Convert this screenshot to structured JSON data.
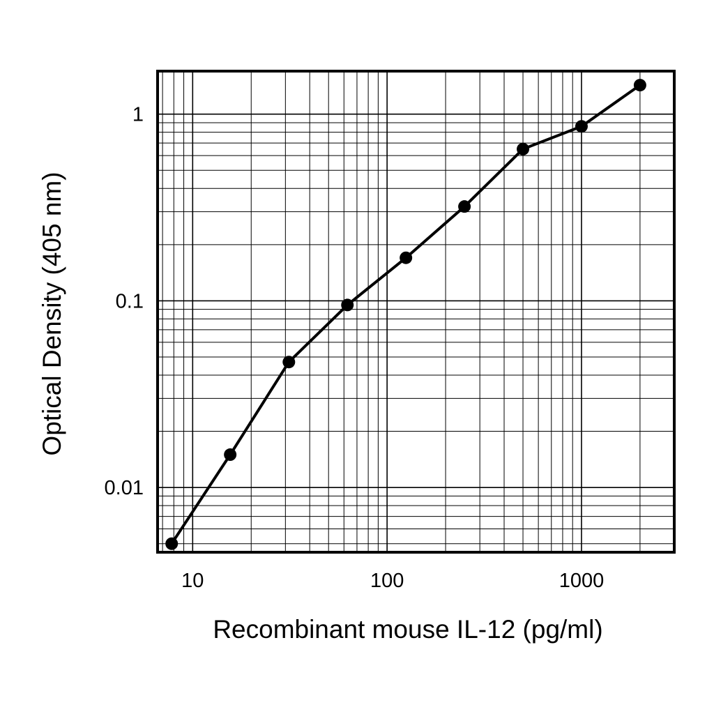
{
  "chart_data": {
    "type": "line",
    "title": "",
    "xlabel": "Recombinant mouse IL-12 (pg/ml)",
    "ylabel": "Optical Density (405 nm)",
    "x_scale": "log",
    "y_scale": "log",
    "xlim": [
      6.6,
      3000
    ],
    "ylim": [
      0.0045,
      1.7
    ],
    "x_ticks": [
      10,
      100,
      1000
    ],
    "x_tick_labels": [
      "10",
      "100",
      "1000"
    ],
    "y_ticks": [
      0.01,
      0.1,
      1
    ],
    "y_tick_labels": [
      "0.01",
      "0.1",
      "1"
    ],
    "grid": true,
    "grid_style": "log-minor",
    "series": [
      {
        "x": [
          7.8,
          15.6,
          31.25,
          62.5,
          125,
          250,
          500,
          1000,
          2000
        ],
        "y": [
          0.005,
          0.015,
          0.047,
          0.095,
          0.17,
          0.32,
          0.65,
          0.86,
          1.43
        ]
      }
    ],
    "colors": {
      "line": "#000000",
      "marker": "#000000",
      "grid": "#000000",
      "frame": "#000000"
    }
  }
}
